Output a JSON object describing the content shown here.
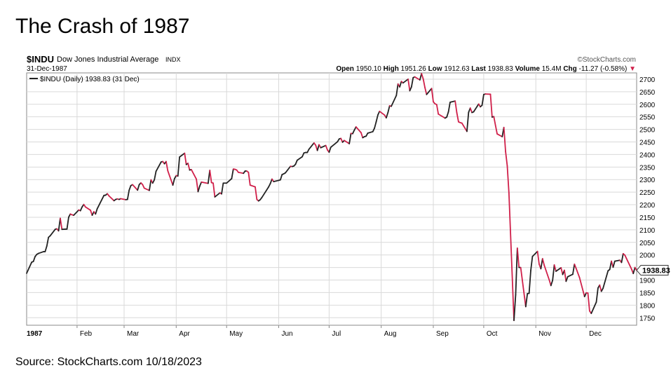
{
  "slide": {
    "title": "The Crash of 1987",
    "source": "Source: StockCharts.com 10/18/2023"
  },
  "chart_data": {
    "type": "line",
    "symbol": "$INDU",
    "name": "Dow Jones Industrial Average",
    "exchange": "INDX",
    "date": "31-Dec-1987",
    "watermark": "©StockCharts.com",
    "quote": {
      "open_label": "Open",
      "open": "1950.10",
      "high_label": "High",
      "high": "1951.26",
      "low_label": "Low",
      "low": "1912.63",
      "last_label": "Last",
      "last": "1938.83",
      "volume_label": "Volume",
      "volume": "15.4M",
      "chg_label": "Chg",
      "chg": "-11.27 (-0.58%)"
    },
    "legend": "$INDU (Daily) 1938.83 (31 Dec)",
    "last_value_label": "1938.83",
    "year_label": "1987",
    "x_months": [
      "Feb",
      "Mar",
      "Apr",
      "May",
      "Jun",
      "Jul",
      "Aug",
      "Sep",
      "Oct",
      "Nov",
      "Dec"
    ],
    "y_ticks": [
      1750,
      1800,
      1850,
      1900,
      1950,
      2000,
      2050,
      2100,
      2150,
      2200,
      2250,
      2300,
      2350,
      2400,
      2450,
      2500,
      2550,
      2600,
      2650,
      2700
    ],
    "ylim": [
      1720,
      2725
    ],
    "x_range": [
      "1987-01-02",
      "1987-12-31"
    ],
    "grid": true,
    "colors": {
      "up": "#222222",
      "down": "#d0204a",
      "grid": "#d9d9d9",
      "axis": "#888888"
    },
    "points": [
      [
        "1987-01-02",
        1927
      ],
      [
        "1987-01-05",
        1971
      ],
      [
        "1987-01-06",
        1974
      ],
      [
        "1987-01-07",
        1993
      ],
      [
        "1987-01-08",
        2002
      ],
      [
        "1987-01-09",
        2006
      ],
      [
        "1987-01-12",
        2013
      ],
      [
        "1987-01-13",
        2013
      ],
      [
        "1987-01-14",
        2035
      ],
      [
        "1987-01-15",
        2070
      ],
      [
        "1987-01-16",
        2076
      ],
      [
        "1987-01-19",
        2102
      ],
      [
        "1987-01-20",
        2104
      ],
      [
        "1987-01-21",
        2096
      ],
      [
        "1987-01-22",
        2146
      ],
      [
        "1987-01-23",
        2102
      ],
      [
        "1987-01-26",
        2103
      ],
      [
        "1987-01-27",
        2150
      ],
      [
        "1987-01-28",
        2163
      ],
      [
        "1987-01-29",
        2160
      ],
      [
        "1987-01-30",
        2158
      ],
      [
        "1987-02-02",
        2179
      ],
      [
        "1987-02-03",
        2176
      ],
      [
        "1987-02-04",
        2191
      ],
      [
        "1987-02-05",
        2201
      ],
      [
        "1987-02-06",
        2191
      ],
      [
        "1987-02-09",
        2178
      ],
      [
        "1987-02-10",
        2158
      ],
      [
        "1987-02-11",
        2172
      ],
      [
        "1987-02-12",
        2163
      ],
      [
        "1987-02-13",
        2184
      ],
      [
        "1987-02-17",
        2237
      ],
      [
        "1987-02-18",
        2238
      ],
      [
        "1987-02-19",
        2244
      ],
      [
        "1987-02-20",
        2235
      ],
      [
        "1987-02-23",
        2216
      ],
      [
        "1987-02-24",
        2221
      ],
      [
        "1987-02-25",
        2223
      ],
      [
        "1987-02-26",
        2221
      ],
      [
        "1987-02-27",
        2224
      ],
      [
        "1987-03-02",
        2220
      ],
      [
        "1987-03-03",
        2221
      ],
      [
        "1987-03-04",
        2258
      ],
      [
        "1987-03-05",
        2276
      ],
      [
        "1987-03-06",
        2280
      ],
      [
        "1987-03-09",
        2258
      ],
      [
        "1987-03-10",
        2280
      ],
      [
        "1987-03-11",
        2287
      ],
      [
        "1987-03-12",
        2280
      ],
      [
        "1987-03-13",
        2266
      ],
      [
        "1987-03-16",
        2257
      ],
      [
        "1987-03-17",
        2299
      ],
      [
        "1987-03-18",
        2286
      ],
      [
        "1987-03-19",
        2299
      ],
      [
        "1987-03-20",
        2333
      ],
      [
        "1987-03-23",
        2370
      ],
      [
        "1987-03-24",
        2372
      ],
      [
        "1987-03-25",
        2363
      ],
      [
        "1987-03-26",
        2372
      ],
      [
        "1987-03-27",
        2335
      ],
      [
        "1987-03-30",
        2278
      ],
      [
        "1987-03-31",
        2304
      ],
      [
        "1987-04-01",
        2316
      ],
      [
        "1987-04-02",
        2314
      ],
      [
        "1987-04-03",
        2390
      ],
      [
        "1987-04-06",
        2405
      ],
      [
        "1987-04-07",
        2360
      ],
      [
        "1987-04-08",
        2365
      ],
      [
        "1987-04-09",
        2338
      ],
      [
        "1987-04-10",
        2340
      ],
      [
        "1987-04-13",
        2302
      ],
      [
        "1987-04-14",
        2252
      ],
      [
        "1987-04-15",
        2274
      ],
      [
        "1987-04-16",
        2290
      ],
      [
        "1987-04-20",
        2285
      ],
      [
        "1987-04-21",
        2337
      ],
      [
        "1987-04-22",
        2288
      ],
      [
        "1987-04-23",
        2286
      ],
      [
        "1987-04-24",
        2231
      ],
      [
        "1987-04-27",
        2247
      ],
      [
        "1987-04-28",
        2243
      ],
      [
        "1987-04-29",
        2286
      ],
      [
        "1987-04-30",
        2286
      ],
      [
        "1987-05-01",
        2286
      ],
      [
        "1987-05-04",
        2304
      ],
      [
        "1987-05-05",
        2342
      ],
      [
        "1987-05-06",
        2341
      ],
      [
        "1987-05-07",
        2338
      ],
      [
        "1987-05-08",
        2329
      ],
      [
        "1987-05-11",
        2325
      ],
      [
        "1987-05-12",
        2334
      ],
      [
        "1987-05-13",
        2334
      ],
      [
        "1987-05-14",
        2329
      ],
      [
        "1987-05-15",
        2278
      ],
      [
        "1987-05-18",
        2271
      ],
      [
        "1987-05-19",
        2221
      ],
      [
        "1987-05-20",
        2215
      ],
      [
        "1987-05-21",
        2220
      ],
      [
        "1987-05-22",
        2229
      ],
      [
        "1987-05-26",
        2271
      ],
      [
        "1987-05-27",
        2284
      ],
      [
        "1987-05-28",
        2302
      ],
      [
        "1987-05-29",
        2292
      ],
      [
        "1987-06-01",
        2297
      ],
      [
        "1987-06-02",
        2299
      ],
      [
        "1987-06-03",
        2320
      ],
      [
        "1987-06-04",
        2323
      ],
      [
        "1987-06-05",
        2327
      ],
      [
        "1987-06-08",
        2353
      ],
      [
        "1987-06-09",
        2352
      ],
      [
        "1987-06-10",
        2354
      ],
      [
        "1987-06-11",
        2361
      ],
      [
        "1987-06-12",
        2377
      ],
      [
        "1987-06-15",
        2391
      ],
      [
        "1987-06-16",
        2406
      ],
      [
        "1987-06-17",
        2408
      ],
      [
        "1987-06-18",
        2408
      ],
      [
        "1987-06-19",
        2421
      ],
      [
        "1987-06-22",
        2446
      ],
      [
        "1987-06-23",
        2437
      ],
      [
        "1987-06-24",
        2416
      ],
      [
        "1987-06-25",
        2439
      ],
      [
        "1987-06-26",
        2427
      ],
      [
        "1987-06-29",
        2436
      ],
      [
        "1987-06-30",
        2418
      ],
      [
        "1987-07-01",
        2409
      ],
      [
        "1987-07-02",
        2429
      ],
      [
        "1987-07-06",
        2451
      ],
      [
        "1987-07-07",
        2462
      ],
      [
        "1987-07-08",
        2464
      ],
      [
        "1987-07-09",
        2449
      ],
      [
        "1987-07-10",
        2456
      ],
      [
        "1987-07-13",
        2443
      ],
      [
        "1987-07-14",
        2484
      ],
      [
        "1987-07-15",
        2483
      ],
      [
        "1987-07-16",
        2497
      ],
      [
        "1987-07-17",
        2510
      ],
      [
        "1987-07-20",
        2487
      ],
      [
        "1987-07-21",
        2467
      ],
      [
        "1987-07-22",
        2471
      ],
      [
        "1987-07-23",
        2473
      ],
      [
        "1987-07-24",
        2485
      ],
      [
        "1987-07-27",
        2491
      ],
      [
        "1987-07-28",
        2505
      ],
      [
        "1987-07-29",
        2530
      ],
      [
        "1987-07-30",
        2557
      ],
      [
        "1987-07-31",
        2572
      ],
      [
        "1987-08-03",
        2557
      ],
      [
        "1987-08-04",
        2546
      ],
      [
        "1987-08-05",
        2567
      ],
      [
        "1987-08-06",
        2594
      ],
      [
        "1987-08-07",
        2592
      ],
      [
        "1987-08-10",
        2635
      ],
      [
        "1987-08-11",
        2681
      ],
      [
        "1987-08-12",
        2669
      ],
      [
        "1987-08-13",
        2691
      ],
      [
        "1987-08-14",
        2685
      ],
      [
        "1987-08-17",
        2700
      ],
      [
        "1987-08-18",
        2654
      ],
      [
        "1987-08-19",
        2669
      ],
      [
        "1987-08-20",
        2706
      ],
      [
        "1987-08-21",
        2709
      ],
      [
        "1987-08-24",
        2697
      ],
      [
        "1987-08-25",
        2722
      ],
      [
        "1987-08-26",
        2701
      ],
      [
        "1987-08-27",
        2667
      ],
      [
        "1987-08-28",
        2639
      ],
      [
        "1987-08-31",
        2663
      ],
      [
        "1987-09-01",
        2610
      ],
      [
        "1987-09-02",
        2602
      ],
      [
        "1987-09-03",
        2599
      ],
      [
        "1987-09-04",
        2561
      ],
      [
        "1987-09-08",
        2545
      ],
      [
        "1987-09-09",
        2549
      ],
      [
        "1987-09-10",
        2570
      ],
      [
        "1987-09-11",
        2608
      ],
      [
        "1987-09-14",
        2613
      ],
      [
        "1987-09-15",
        2566
      ],
      [
        "1987-09-16",
        2530
      ],
      [
        "1987-09-17",
        2527
      ],
      [
        "1987-09-18",
        2525
      ],
      [
        "1987-09-21",
        2492
      ],
      [
        "1987-09-22",
        2568
      ],
      [
        "1987-09-23",
        2585
      ],
      [
        "1987-09-24",
        2567
      ],
      [
        "1987-09-25",
        2570
      ],
      [
        "1987-09-28",
        2601
      ],
      [
        "1987-09-29",
        2590
      ],
      [
        "1987-09-30",
        2596
      ],
      [
        "1987-10-01",
        2639
      ],
      [
        "1987-10-02",
        2641
      ],
      [
        "1987-10-05",
        2640
      ],
      [
        "1987-10-06",
        2549
      ],
      [
        "1987-10-07",
        2551
      ],
      [
        "1987-10-08",
        2516
      ],
      [
        "1987-10-09",
        2482
      ],
      [
        "1987-10-12",
        2471
      ],
      [
        "1987-10-13",
        2508
      ],
      [
        "1987-10-14",
        2412
      ],
      [
        "1987-10-15",
        2355
      ],
      [
        "1987-10-16",
        2247
      ],
      [
        "1987-10-19",
        1739
      ],
      [
        "1987-10-20",
        1841
      ],
      [
        "1987-10-21",
        2027
      ],
      [
        "1987-10-22",
        1950
      ],
      [
        "1987-10-23",
        1950
      ],
      [
        "1987-10-26",
        1794
      ],
      [
        "1987-10-27",
        1846
      ],
      [
        "1987-10-28",
        1847
      ],
      [
        "1987-10-29",
        1938
      ],
      [
        "1987-10-30",
        1994
      ],
      [
        "1987-11-02",
        2014
      ],
      [
        "1987-11-03",
        1963
      ],
      [
        "1987-11-04",
        1945
      ],
      [
        "1987-11-05",
        1985
      ],
      [
        "1987-11-06",
        1959
      ],
      [
        "1987-11-09",
        1900
      ],
      [
        "1987-11-10",
        1878
      ],
      [
        "1987-11-11",
        1899
      ],
      [
        "1987-11-12",
        1960
      ],
      [
        "1987-11-13",
        1935
      ],
      [
        "1987-11-16",
        1949
      ],
      [
        "1987-11-17",
        1922
      ],
      [
        "1987-11-18",
        1939
      ],
      [
        "1987-11-19",
        1895
      ],
      [
        "1987-11-20",
        1913
      ],
      [
        "1987-11-23",
        1923
      ],
      [
        "1987-11-24",
        1963
      ],
      [
        "1987-11-25",
        1946
      ],
      [
        "1987-11-27",
        1910
      ],
      [
        "1987-11-30",
        1834
      ],
      [
        "1987-12-01",
        1849
      ],
      [
        "1987-12-02",
        1848
      ],
      [
        "1987-12-03",
        1777
      ],
      [
        "1987-12-04",
        1767
      ],
      [
        "1987-12-07",
        1812
      ],
      [
        "1987-12-08",
        1868
      ],
      [
        "1987-12-09",
        1880
      ],
      [
        "1987-12-10",
        1855
      ],
      [
        "1987-12-11",
        1867
      ],
      [
        "1987-12-14",
        1937
      ],
      [
        "1987-12-15",
        1942
      ],
      [
        "1987-12-16",
        1975
      ],
      [
        "1987-12-17",
        1951
      ],
      [
        "1987-12-18",
        1975
      ],
      [
        "1987-12-21",
        1979
      ],
      [
        "1987-12-22",
        1970
      ],
      [
        "1987-12-23",
        2005
      ],
      [
        "1987-12-24",
        1999
      ],
      [
        "1987-12-28",
        1943
      ],
      [
        "1987-12-29",
        1926
      ],
      [
        "1987-12-30",
        1950
      ],
      [
        "1987-12-31",
        1939
      ]
    ]
  }
}
